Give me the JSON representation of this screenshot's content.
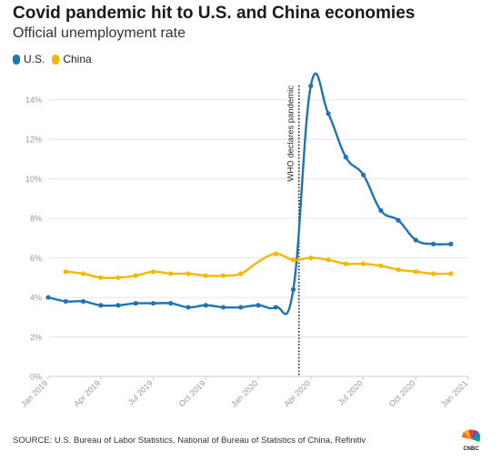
{
  "title": "Covid pandemic hit to U.S. and China economies",
  "subtitle": "Official unemployment rate",
  "source": "SOURCE: U.S. Bureau of Labor Statistics, National of Bureau of Statistics of China, Refinitiv",
  "logo_text": "CNBC",
  "colors": {
    "us": "#1f73b7",
    "china": "#f5b800",
    "grid": "#e6e6e6",
    "axis_text": "#999999"
  },
  "chart_data": {
    "type": "line",
    "title": "Covid pandemic hit to U.S. and China economies",
    "subtitle": "Official unemployment rate",
    "xlabel": "",
    "ylabel": "",
    "y_ticks": [
      "0%",
      "2%",
      "4%",
      "6%",
      "8%",
      "10%",
      "12%",
      "14%"
    ],
    "y_tick_values": [
      0,
      2,
      4,
      6,
      8,
      10,
      12,
      14
    ],
    "x_ticks": [
      "Jan 2019",
      "Apr 2019",
      "Jul 2019",
      "Oct 2019",
      "Jan 2020",
      "Apr 2020",
      "Jul 2020",
      "Oct 2020",
      "Jan 2021"
    ],
    "x_tick_values": [
      "2019-01",
      "2019-04",
      "2019-07",
      "2019-10",
      "2020-01",
      "2020-04",
      "2020-07",
      "2020-10",
      "2021-01"
    ],
    "xlim": [
      "2019-01",
      "2021-01"
    ],
    "ylim": [
      0,
      15
    ],
    "grid": true,
    "legend": "top-left",
    "annotation": {
      "date": "2020-03-11",
      "label": "WHO declares pandemic",
      "style": "dotted"
    },
    "series": [
      {
        "name": "U.S.",
        "color": "#1f73b7",
        "x": [
          "2019-01",
          "2019-02",
          "2019-03",
          "2019-04",
          "2019-05",
          "2019-06",
          "2019-07",
          "2019-08",
          "2019-09",
          "2019-10",
          "2019-11",
          "2019-12",
          "2020-01",
          "2020-02",
          "2020-03",
          "2020-04",
          "2020-05",
          "2020-06",
          "2020-07",
          "2020-08",
          "2020-09",
          "2020-10",
          "2020-11",
          "2020-12"
        ],
        "values": [
          4.0,
          3.8,
          3.8,
          3.6,
          3.6,
          3.7,
          3.7,
          3.7,
          3.5,
          3.6,
          3.5,
          3.5,
          3.6,
          3.5,
          4.4,
          14.7,
          13.3,
          11.1,
          10.2,
          8.4,
          7.9,
          6.9,
          6.7,
          6.7
        ]
      },
      {
        "name": "China",
        "color": "#f5b800",
        "x": [
          "2019-02",
          "2019-03",
          "2019-04",
          "2019-05",
          "2019-06",
          "2019-07",
          "2019-08",
          "2019-09",
          "2019-10",
          "2019-11",
          "2019-12",
          "2020-01",
          "2020-02",
          "2020-03",
          "2020-04",
          "2020-05",
          "2020-06",
          "2020-07",
          "2020-08",
          "2020-09",
          "2020-10",
          "2020-11",
          "2020-12"
        ],
        "values": [
          5.3,
          5.2,
          5.0,
          5.0,
          5.1,
          5.3,
          5.2,
          5.2,
          5.1,
          5.1,
          5.2,
          5.8,
          6.2,
          5.9,
          6.0,
          5.9,
          5.7,
          5.7,
          5.6,
          5.4,
          5.3,
          5.2,
          5.2
        ],
        "markers": [
          true,
          true,
          true,
          true,
          true,
          true,
          true,
          true,
          true,
          true,
          true,
          false,
          true,
          true,
          true,
          true,
          true,
          true,
          true,
          true,
          true,
          true,
          true
        ]
      }
    ]
  }
}
